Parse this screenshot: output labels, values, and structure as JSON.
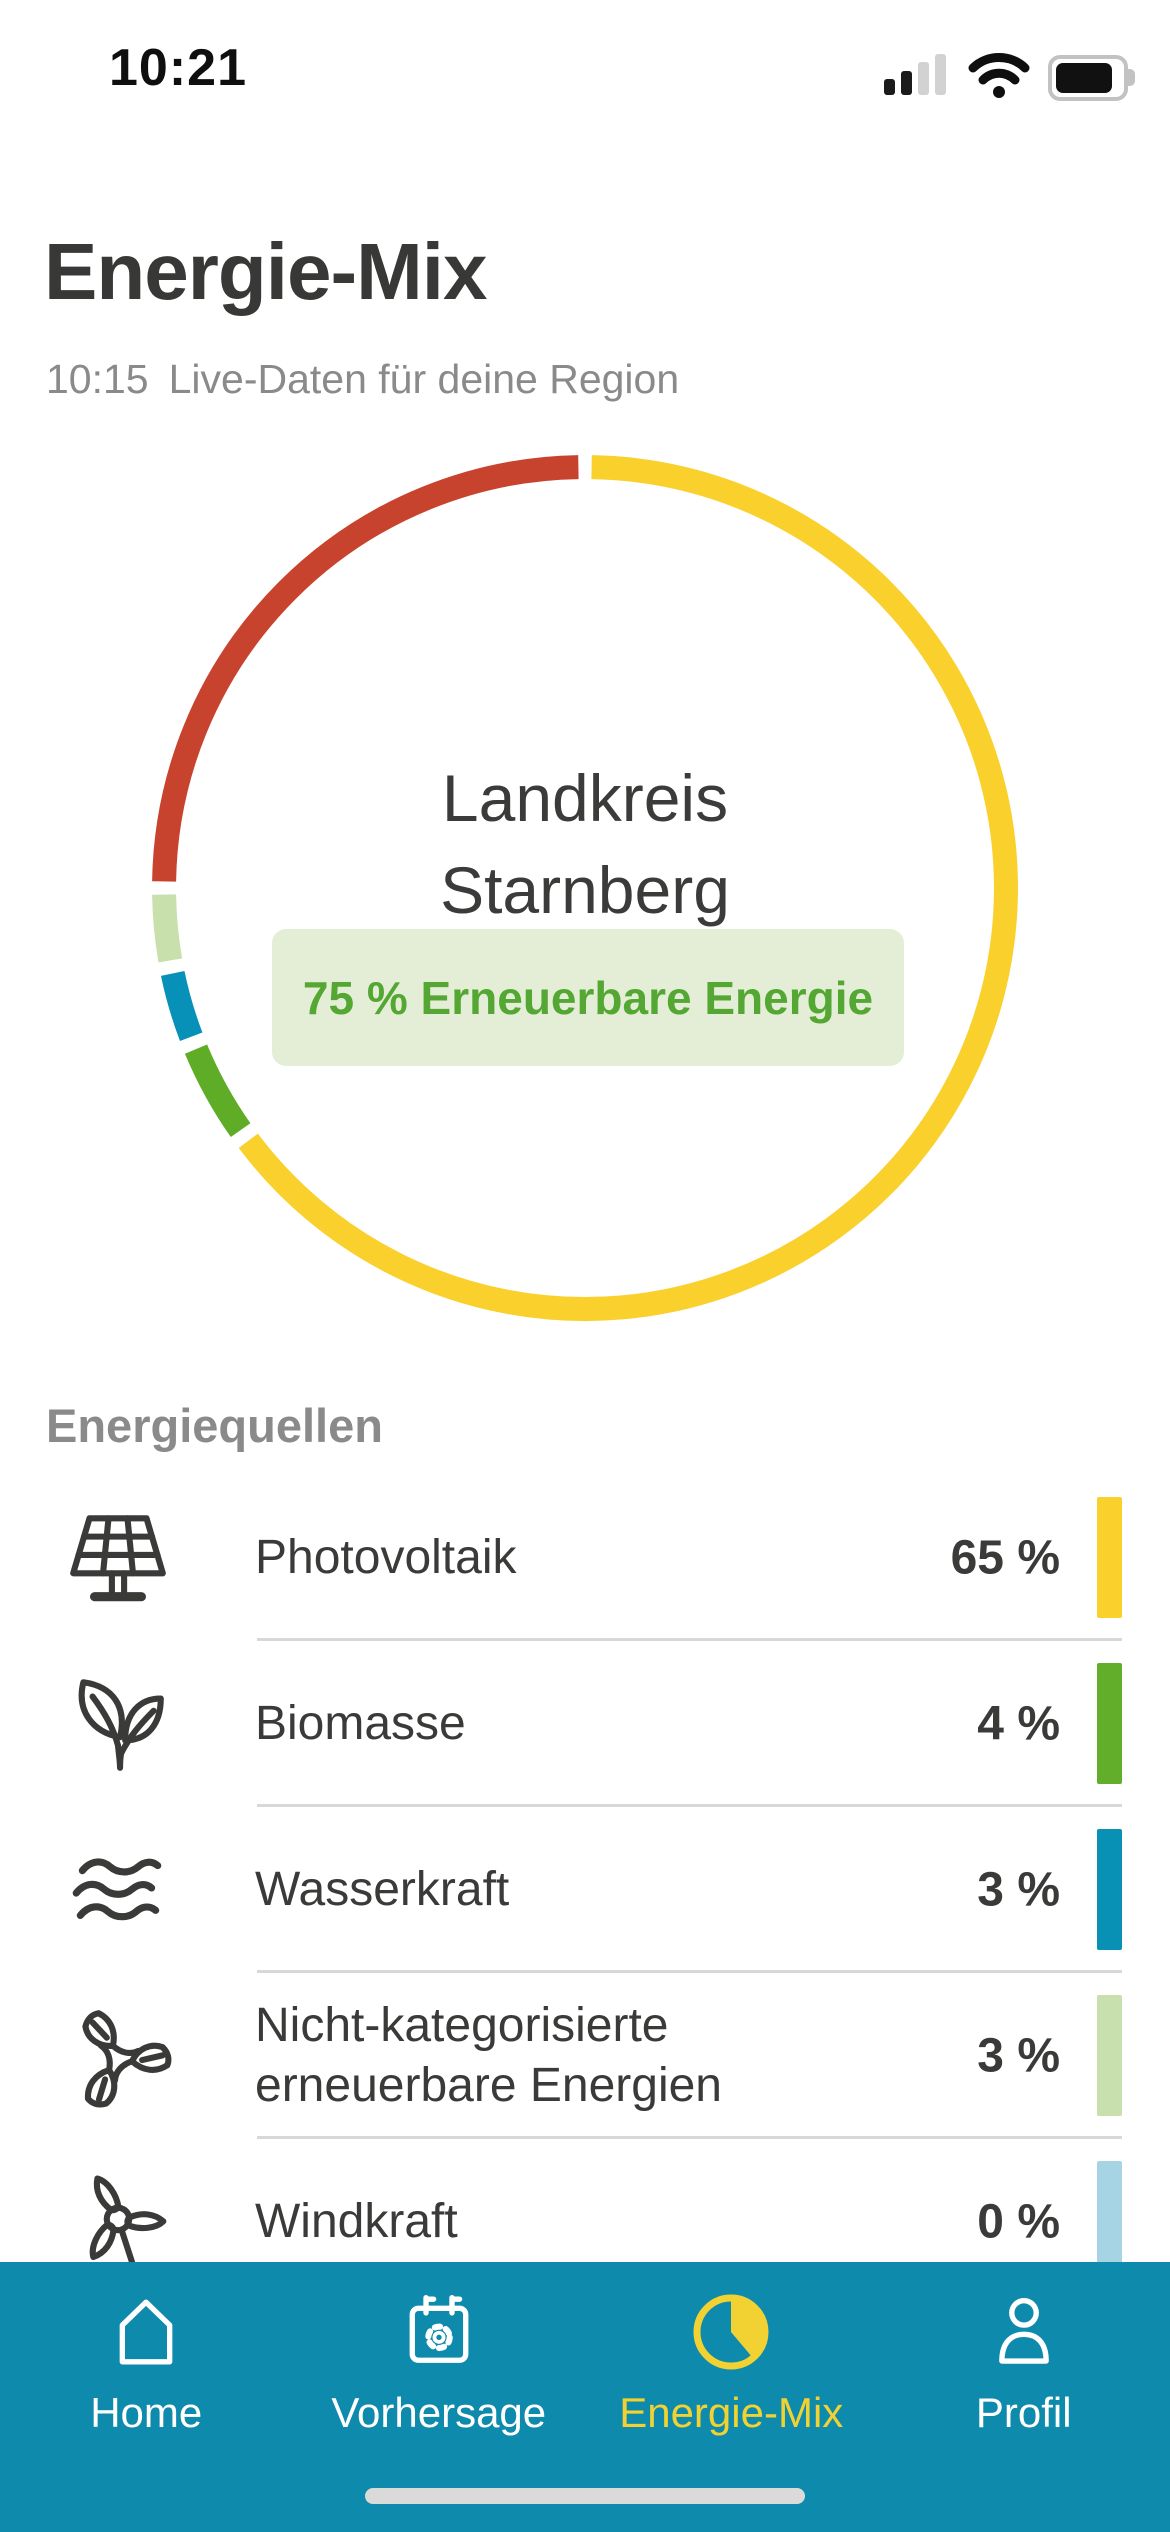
{
  "status_bar": {
    "time": "10:21"
  },
  "header": {
    "title": "Energie-Mix",
    "updated_time": "10:15",
    "subtitle": "Live-Daten für deine Region"
  },
  "chart_data": {
    "type": "pie",
    "variant": "donut-ring",
    "start_angle_deg": 0,
    "direction": "clockwise",
    "center_label_line1": "Landkreis",
    "center_label_line2": "Starnberg",
    "badge_label": "75 % Erneuerbare Energie",
    "renewable_percent": 75,
    "segments": [
      {
        "label": "Photovoltaik",
        "value": 65,
        "color": "#f9d02c"
      },
      {
        "label": "Biomasse",
        "value": 4,
        "color": "#5fac27"
      },
      {
        "label": "Wasserkraft",
        "value": 3,
        "color": "#0790b8"
      },
      {
        "label": "Nicht-kategorisierte erneuerbare Energien",
        "value": 3,
        "color": "#c7e0ac"
      },
      {
        "label": "Windkraft",
        "value": 0,
        "color": "#a7d4e4"
      },
      {
        "label": "",
        "value": 25,
        "color": "#c8432e"
      }
    ]
  },
  "sources": {
    "section_title": "Energiequellen",
    "items": [
      {
        "label": "Photovoltaik",
        "value": "65 %",
        "color": "#f9d02c"
      },
      {
        "label": "Biomasse",
        "value": "4 %",
        "color": "#62ad29"
      },
      {
        "label": "Wasserkraft",
        "value": "3 %",
        "color": "#0890b5"
      },
      {
        "label": "Nicht-kategorisierte erneuerbare Energien",
        "value": "3 %",
        "color": "#c8e0ae"
      },
      {
        "label": "Windkraft",
        "value": "0 %",
        "color": "#a7d4e4"
      }
    ]
  },
  "tab_bar": {
    "active_tab": "Energie-Mix",
    "items": [
      {
        "label": "Home"
      },
      {
        "label": "Vorhersage"
      },
      {
        "label": "Energie-Mix"
      },
      {
        "label": "Profil"
      }
    ]
  }
}
